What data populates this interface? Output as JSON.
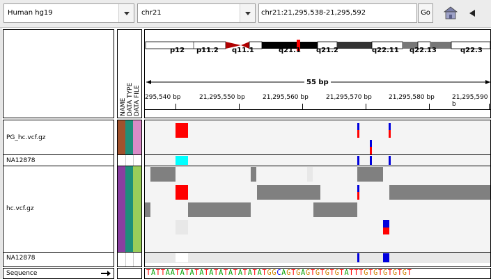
{
  "toolbar": {
    "genome": "Human hg19",
    "chromosome": "chr21",
    "locus": "chr21:21,295,538-21,295,592",
    "go_label": "Go",
    "home_icon": "home-icon",
    "back_icon": "back-arrow-icon"
  },
  "attribute_headers": [
    "NAME",
    "DATA TYPE",
    "DATA FILE"
  ],
  "ideogram": {
    "bands": [
      "p12",
      "p11.2",
      "q11.1",
      "q21.1",
      "q21.2",
      "q22.11",
      "q22.13",
      "q22.3"
    ]
  },
  "ruler": {
    "span_label": "55 bp",
    "ticks": [
      "295,540 bp",
      "21,295,550 bp",
      "21,295,560 bp",
      "21,295,570 bp",
      "21,295,580 bp",
      "21,295,590 b"
    ]
  },
  "tracks": {
    "track1_name": "PG_hc.vcf.gz",
    "track1_sample": "NA12878",
    "track2_name": "hc.vcf.gz",
    "track2_sample": "NA12878",
    "sequence_label": "Sequence",
    "sequence_arrow": "forward-strand-arrow"
  },
  "sequence": "TATTAATATATATATATATATATATGGCAGTGAGTGTGTGTATTTGTGTGTGTGT",
  "colors": {
    "attr_name_track1": "#a0522d",
    "attr_type": "#1e8f7a",
    "attr_file_track1": "#d98cc8",
    "attr_name_track2": "#8a3fa0",
    "attr_file_track2": "#9acd5a",
    "variant_red": "#ff0000",
    "variant_blue": "#0000dd",
    "variant_cyan": "#00ffff",
    "coverage_gray": "#808080",
    "base_A": "#00a000",
    "base_C": "#0000ff",
    "base_G": "#d08000",
    "base_T": "#ff0000"
  }
}
